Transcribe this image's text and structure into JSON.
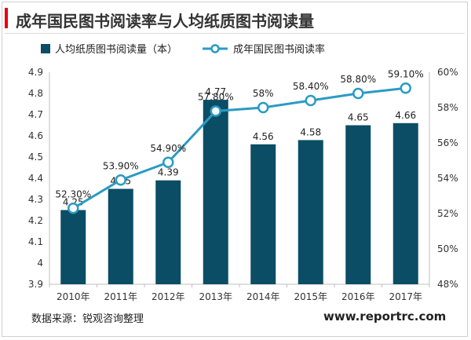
{
  "header": {
    "title": "成年国民图书阅读率与人均纸质图书阅读量"
  },
  "chart_data": {
    "type": "bar",
    "categories": [
      "2010年",
      "2011年",
      "2012年",
      "2013年",
      "2014年",
      "2015年",
      "2016年",
      "2017年"
    ],
    "series": [
      {
        "name": "人均纸质图书阅读量（本）",
        "type": "bar",
        "axis": "left",
        "values": [
          4.25,
          4.35,
          4.39,
          4.77,
          4.56,
          4.58,
          4.65,
          4.66
        ],
        "labels": [
          "4.25",
          "4.35",
          "4.39",
          "4.77",
          "4.56",
          "4.58",
          "4.65",
          "4.66"
        ],
        "color": "#0b4d64"
      },
      {
        "name": "成年国民图书阅读率",
        "type": "line",
        "axis": "right",
        "values": [
          52.3,
          53.9,
          54.9,
          57.8,
          58.0,
          58.4,
          58.8,
          59.1
        ],
        "labels": [
          "52.30%",
          "53.90%",
          "54.90%",
          "57.80%",
          "58%",
          "58.40%",
          "58.80%",
          "59.10%"
        ],
        "color": "#2a9bc4"
      }
    ],
    "left_axis": {
      "range": [
        3.9,
        4.9
      ],
      "ticks": [
        "3.9",
        "4",
        "4.1",
        "4.2",
        "4.3",
        "4.4",
        "4.5",
        "4.6",
        "4.7",
        "4.8",
        "4.9"
      ]
    },
    "right_axis": {
      "range": [
        48,
        60
      ],
      "ticks": [
        "48%",
        "50%",
        "52%",
        "54%",
        "56%",
        "58%",
        "60%"
      ]
    },
    "legend_position": "top",
    "grid": false
  },
  "footer": {
    "source": "数据来源：锐观咨询整理",
    "website": "www.reportrc.com"
  }
}
